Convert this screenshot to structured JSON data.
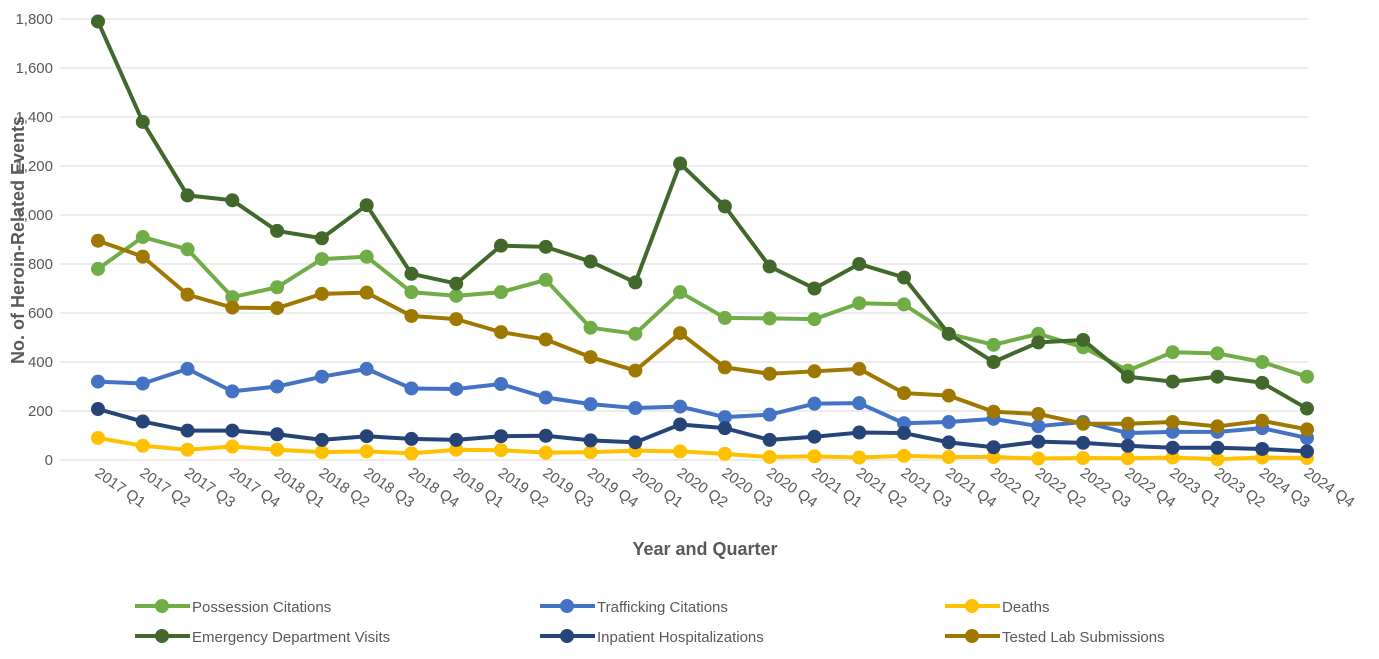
{
  "chart_data": {
    "type": "line",
    "x_label": "Year and Quarter",
    "y_label": "No. of Heroin-Related Events",
    "categories": [
      "2017 Q1",
      "2017 Q2",
      "2017 Q3",
      "2017 Q4",
      "2018 Q1",
      "2018 Q2",
      "2018 Q3",
      "2018 Q4",
      "2019 Q1",
      "2019 Q2",
      "2019 Q3",
      "2019 Q4",
      "2020 Q1",
      "2020 Q2",
      "2020 Q3",
      "2020 Q4",
      "2021 Q1",
      "2021 Q2",
      "2021 Q3",
      "2021 Q4",
      "2022 Q1",
      "2022 Q2",
      "2022 Q3",
      "2022 Q4",
      "2023 Q1",
      "2023 Q2",
      "2024 Q3",
      "2024 Q4"
    ],
    "ylim": [
      0,
      1800
    ],
    "yticks": [
      0,
      200,
      400,
      600,
      800,
      {
        "value": 1000,
        "label": "1,000"
      },
      {
        "value": 1200,
        "label": "1,200"
      },
      {
        "value": 1400,
        "label": "1,400"
      },
      {
        "value": 1600,
        "label": "1,600"
      },
      {
        "value": 1800,
        "label": "1,800"
      }
    ],
    "grid": true,
    "legend": "bottom",
    "series": [
      {
        "name": "Possession Citations",
        "color": "#70ad47",
        "values": [
          780,
          910,
          860,
          665,
          705,
          820,
          830,
          685,
          670,
          685,
          735,
          540,
          515,
          685,
          580,
          578,
          575,
          640,
          635,
          515,
          470,
          515,
          460,
          365,
          440,
          435,
          400,
          340
        ]
      },
      {
        "name": "Trafficking Citations",
        "color": "#4472c4",
        "values": [
          320,
          312,
          372,
          280,
          300,
          340,
          372,
          292,
          290,
          310,
          255,
          228,
          212,
          218,
          175,
          185,
          230,
          232,
          150,
          155,
          168,
          138,
          155,
          110,
          115,
          115,
          130,
          90
        ]
      },
      {
        "name": "Deaths",
        "color": "#ffc000",
        "values": [
          90,
          58,
          42,
          55,
          42,
          32,
          35,
          27,
          42,
          40,
          30,
          32,
          38,
          35,
          25,
          12,
          15,
          10,
          17,
          12,
          12,
          6,
          8,
          7,
          10,
          3,
          10,
          8
        ]
      },
      {
        "name": "Emergency Department Visits",
        "color": "#43682b",
        "values": [
          1790,
          1380,
          1080,
          1060,
          935,
          905,
          1040,
          760,
          720,
          875,
          870,
          810,
          725,
          1210,
          1035,
          790,
          700,
          800,
          745,
          515,
          400,
          480,
          490,
          340,
          320,
          340,
          315,
          210
        ]
      },
      {
        "name": "Inpatient Hospitalizations",
        "color": "#264478",
        "values": [
          208,
          157,
          120,
          120,
          105,
          82,
          97,
          86,
          82,
          97,
          99,
          80,
          72,
          145,
          130,
          82,
          95,
          112,
          110,
          72,
          52,
          75,
          70,
          58,
          50,
          50,
          45,
          35
        ]
      },
      {
        "name": "Tested Lab Submissions",
        "color": "#9e7800",
        "values": [
          895,
          830,
          675,
          622,
          620,
          678,
          683,
          588,
          575,
          522,
          492,
          420,
          365,
          518,
          378,
          352,
          362,
          372,
          273,
          263,
          197,
          188,
          148,
          148,
          155,
          137,
          160,
          125
        ]
      }
    ]
  }
}
